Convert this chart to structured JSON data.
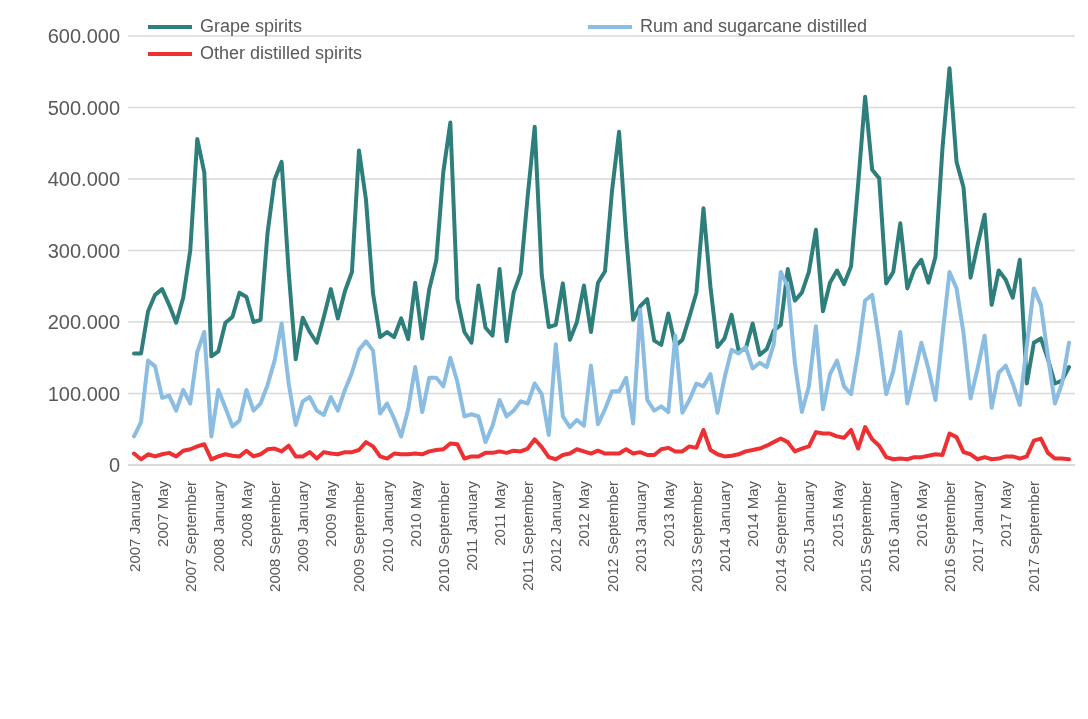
{
  "chart_data": {
    "type": "line",
    "categories": [
      "2007 January",
      null,
      null,
      null,
      "2007 May",
      null,
      null,
      null,
      "2007 September",
      null,
      null,
      null,
      "2008 January",
      null,
      null,
      null,
      "2008 May",
      null,
      null,
      null,
      "2008 September",
      null,
      null,
      null,
      "2009 January",
      null,
      null,
      null,
      "2009 May",
      null,
      null,
      null,
      "2009 September",
      null,
      null,
      null,
      "2010 January",
      null,
      null,
      null,
      "2010 May",
      null,
      null,
      null,
      "2010 September",
      null,
      null,
      null,
      "2011 January",
      null,
      null,
      null,
      "2011 May",
      null,
      null,
      null,
      "2011 September",
      null,
      null,
      null,
      "2012 January",
      null,
      null,
      null,
      "2012 May",
      null,
      null,
      null,
      "2012 September",
      null,
      null,
      null,
      "2013 January",
      null,
      null,
      null,
      "2013 May",
      null,
      null,
      null,
      "2013 September",
      null,
      null,
      null,
      "2014 January",
      null,
      null,
      null,
      "2014 May",
      null,
      null,
      null,
      "2014 September",
      null,
      null,
      null,
      "2015 January",
      null,
      null,
      null,
      "2015 May",
      null,
      null,
      null,
      "2015 September",
      null,
      null,
      null,
      "2016 January",
      null,
      null,
      null,
      "2016 May",
      null,
      null,
      null,
      "2016 September",
      null,
      null,
      null,
      "2017 January",
      null,
      null,
      null,
      "2017 May",
      null,
      null,
      null,
      "2017 September",
      null,
      null,
      null,
      null,
      null
    ],
    "series": [
      {
        "name": "Grape spirits",
        "color": "#2e7f7c",
        "values": [
          156000,
          156000,
          215000,
          238000,
          246000,
          224000,
          199000,
          234000,
          300000,
          456000,
          409000,
          152000,
          159000,
          199000,
          207000,
          241000,
          235000,
          200000,
          203000,
          325000,
          399000,
          424000,
          270000,
          148000,
          206000,
          186000,
          171000,
          207000,
          246000,
          205000,
          243000,
          270000,
          440000,
          371000,
          240000,
          179000,
          186000,
          179000,
          205000,
          176000,
          255000,
          177000,
          246000,
          286000,
          410000,
          479000,
          232000,
          186000,
          171000,
          251000,
          192000,
          181000,
          274000,
          173000,
          241000,
          268000,
          376000,
          473000,
          266000,
          193000,
          196000,
          254000,
          175000,
          200000,
          251000,
          186000,
          255000,
          271000,
          384000,
          466000,
          321000,
          203000,
          222000,
          232000,
          174000,
          168000,
          212000,
          167000,
          175000,
          207000,
          241000,
          359000,
          249000,
          165000,
          177000,
          210000,
          160000,
          162000,
          198000,
          154000,
          162000,
          188000,
          196000,
          274000,
          230000,
          241000,
          270000,
          329000,
          215000,
          255000,
          272000,
          253000,
          278000,
          392000,
          515000,
          413000,
          401000,
          254000,
          270000,
          338000,
          247000,
          274000,
          287000,
          255000,
          291000,
          443000,
          555000,
          424000,
          388000,
          262000,
          308000,
          350000,
          224000,
          272000,
          259000,
          234000,
          287000,
          114000,
          171000,
          177000,
          148000,
          114000,
          118000,
          137000
        ]
      },
      {
        "name": "Rum and sugarcane distilled",
        "color": "#8bbce2",
        "values": [
          40000,
          60000,
          146000,
          138000,
          94000,
          97000,
          76000,
          105000,
          86000,
          158000,
          186000,
          40000,
          105000,
          80000,
          54000,
          62000,
          105000,
          76000,
          86000,
          112000,
          146000,
          198000,
          114000,
          56000,
          89000,
          95000,
          76000,
          70000,
          95000,
          76000,
          105000,
          129000,
          161000,
          173000,
          160000,
          72000,
          86000,
          65000,
          40000,
          78000,
          137000,
          74000,
          122000,
          122000,
          110000,
          150000,
          116000,
          68000,
          71000,
          68000,
          32000,
          55000,
          91000,
          68000,
          76000,
          89000,
          86000,
          114000,
          99000,
          42000,
          169000,
          68000,
          53000,
          63000,
          55000,
          139000,
          57000,
          78000,
          103000,
          103000,
          122000,
          58000,
          217000,
          91000,
          76000,
          82000,
          74000,
          181000,
          73000,
          91000,
          114000,
          110000,
          127000,
          73000,
          122000,
          161000,
          156000,
          165000,
          135000,
          143000,
          137000,
          169000,
          270000,
          249000,
          143000,
          74000,
          110000,
          194000,
          78000,
          127000,
          146000,
          110000,
          99000,
          158000,
          230000,
          238000,
          173000,
          99000,
          131000,
          186000,
          86000,
          127000,
          171000,
          135000,
          91000,
          181000,
          270000,
          247000,
          184000,
          93000,
          135000,
          181000,
          80000,
          129000,
          139000,
          114000,
          84000,
          167000,
          247000,
          224000,
          152000,
          86000,
          114000,
          171000
        ]
      },
      {
        "name": "Other distilled spirits",
        "color": "#ee3033",
        "values": [
          16000,
          8000,
          15000,
          12000,
          15000,
          17000,
          12000,
          20000,
          22000,
          26000,
          29000,
          8000,
          12000,
          15000,
          13000,
          12000,
          20000,
          12000,
          15000,
          22000,
          23000,
          19000,
          27000,
          12000,
          12000,
          18000,
          9000,
          18000,
          16000,
          15000,
          18000,
          18000,
          21000,
          32000,
          26000,
          12000,
          9000,
          16000,
          15000,
          15000,
          16000,
          15000,
          19000,
          21000,
          22000,
          30000,
          29000,
          9000,
          12000,
          12000,
          17000,
          17000,
          19000,
          17000,
          20000,
          19000,
          23000,
          36000,
          25000,
          11000,
          8000,
          14000,
          16000,
          22000,
          19000,
          16000,
          20000,
          16000,
          16000,
          16000,
          22000,
          16000,
          18000,
          14000,
          14000,
          22000,
          24000,
          19000,
          19000,
          26000,
          24000,
          49000,
          21000,
          15000,
          12000,
          13000,
          15000,
          19000,
          21000,
          23000,
          27000,
          32000,
          37000,
          32000,
          19000,
          23000,
          26000,
          46000,
          44000,
          44000,
          40000,
          38000,
          49000,
          23000,
          53000,
          36000,
          27000,
          11000,
          8000,
          9000,
          8000,
          11000,
          11000,
          13000,
          15000,
          14000,
          44000,
          39000,
          18000,
          15000,
          8000,
          11000,
          8000,
          9000,
          12000,
          12000,
          9000,
          12000,
          34000,
          37000,
          17000,
          9000,
          9000,
          8000
        ]
      }
    ],
    "ylim": [
      0,
      600000
    ],
    "yticks": [
      0,
      {
        "value": 100000,
        "label": "100.000"
      },
      {
        "value": 200000,
        "label": "200.000"
      },
      {
        "value": 300000,
        "label": "300.000"
      },
      {
        "value": 400000,
        "label": "400.000"
      },
      {
        "value": 500000,
        "label": "500.000"
      },
      {
        "value": 600000,
        "label": "600.000"
      }
    ],
    "grid": "y",
    "legend": "top left"
  }
}
